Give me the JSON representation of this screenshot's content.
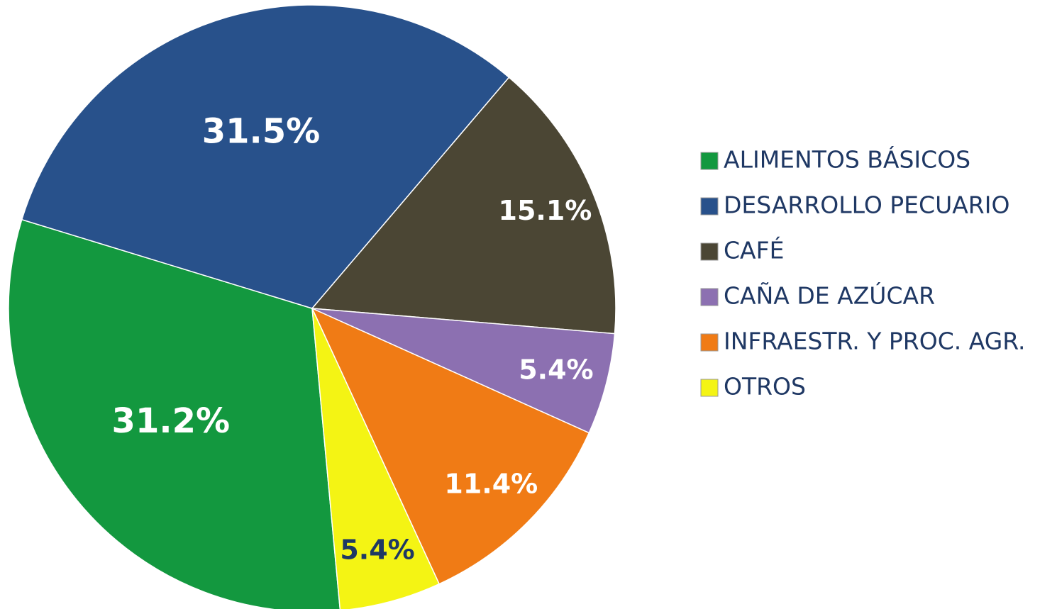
{
  "chart_data": {
    "type": "pie",
    "categories": [
      "ALIMENTOS BÁSICOS",
      "DESARROLLO PECUARIO",
      "CAFÉ",
      "CAÑA DE AZÚCAR",
      "INFRAESTR. Y PROC. AGR.",
      "OTROS"
    ],
    "values": [
      31.2,
      31.5,
      15.1,
      5.4,
      11.4,
      5.4
    ],
    "value_labels": [
      "31.2%",
      "31.5%",
      "15.1%",
      "5.4%",
      "11.4%",
      "5.4%"
    ],
    "colors": [
      "#13983f",
      "#28518b",
      "#4b4634",
      "#8c70b1",
      "#f07b15",
      "#f4f414"
    ],
    "label_colors": [
      "#ffffff",
      "#ffffff",
      "#ffffff",
      "#ffffff",
      "#ffffff",
      "#1f3864"
    ],
    "legend": "right"
  }
}
